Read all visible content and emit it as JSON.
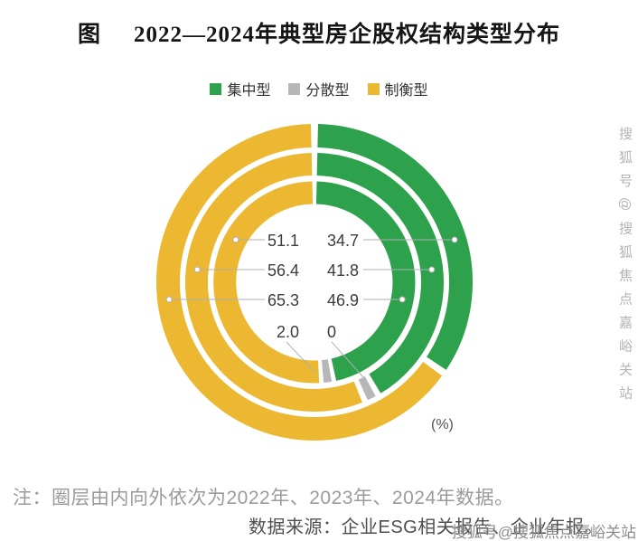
{
  "header": {
    "prefix": "图",
    "title": "2022—2024年典型房企股权结构类型分布"
  },
  "legend": {
    "items": [
      {
        "label": "集中型",
        "color": "#2da14c"
      },
      {
        "label": "分散型",
        "color": "#b7b7b7"
      },
      {
        "label": "制衡型",
        "color": "#ecb831"
      }
    ]
  },
  "chart_data": {
    "type": "pie",
    "variant": "concentric-donut",
    "unit_label": "(%)",
    "segment_order": [
      "集中型",
      "分散型",
      "制衡型"
    ],
    "rings": [
      {
        "year": "2022",
        "position": "inner",
        "values": {
          "集中型": 46.9,
          "分散型": 2.0,
          "制衡型": 51.1
        }
      },
      {
        "year": "2023",
        "position": "middle",
        "values": {
          "集中型": 41.8,
          "分散型": 1.8,
          "制衡型": 56.4
        }
      },
      {
        "year": "2024",
        "position": "outer",
        "values": {
          "集中型": 34.7,
          "分散型": 0,
          "制衡型": 65.3
        }
      }
    ],
    "labels": {
      "left": [
        "51.1",
        "56.4",
        "65.3",
        "2.0"
      ],
      "right": [
        "34.7",
        "41.8",
        "46.9",
        "0"
      ]
    }
  },
  "note": "注：圈层由内向外依次为2022年、2023年、2024年数据。",
  "source": "数据来源：企业ESG相关报告、企业年报。",
  "watermark": {
    "vertical": "搜狐号@搜狐焦点嘉峪关站",
    "bottom": "搜狐号@搜狐焦点嘉峪关站"
  }
}
